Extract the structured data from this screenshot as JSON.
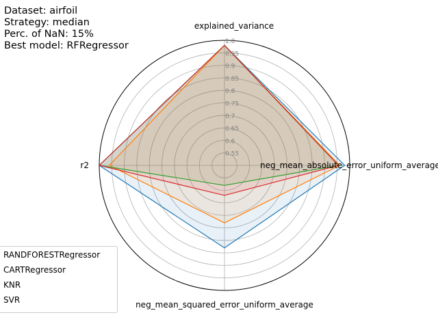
{
  "info": {
    "dataset": "Dataset: airfoil",
    "strategy": "Strategy: median",
    "nan": "Perc. of NaN: 15%",
    "best": "Best model: RFRegressor"
  },
  "chart_data": {
    "type": "radar",
    "axes": [
      "explained_variance",
      "neg_mean_absolute_error_uniform_average",
      "neg_mean_squared_error_uniform_average",
      "r2"
    ],
    "rlim": [
      0.5,
      1.0
    ],
    "rticks": [
      "0.55",
      "0.6",
      "0.65",
      "0.7",
      "0.75",
      "0.8",
      "0.85",
      "0.9",
      "0.95",
      "1.0"
    ],
    "grid": true,
    "legend": {
      "placement": "lower-left"
    },
    "series": [
      {
        "name": "RANDFORESTRegressor",
        "color": "#1f77b4",
        "values": [
          0.98,
          0.98,
          0.83,
          1.0
        ]
      },
      {
        "name": "CARTRegressor",
        "color": "#ff7f0e",
        "values": [
          0.98,
          0.96,
          0.73,
          0.96
        ]
      },
      {
        "name": "KNR",
        "color": "#2ca02c",
        "values": [
          0.98,
          0.955,
          0.58,
          1.0
        ]
      },
      {
        "name": "SVR",
        "color": "#d62728",
        "values": [
          0.98,
          0.955,
          0.62,
          1.0
        ]
      }
    ]
  }
}
